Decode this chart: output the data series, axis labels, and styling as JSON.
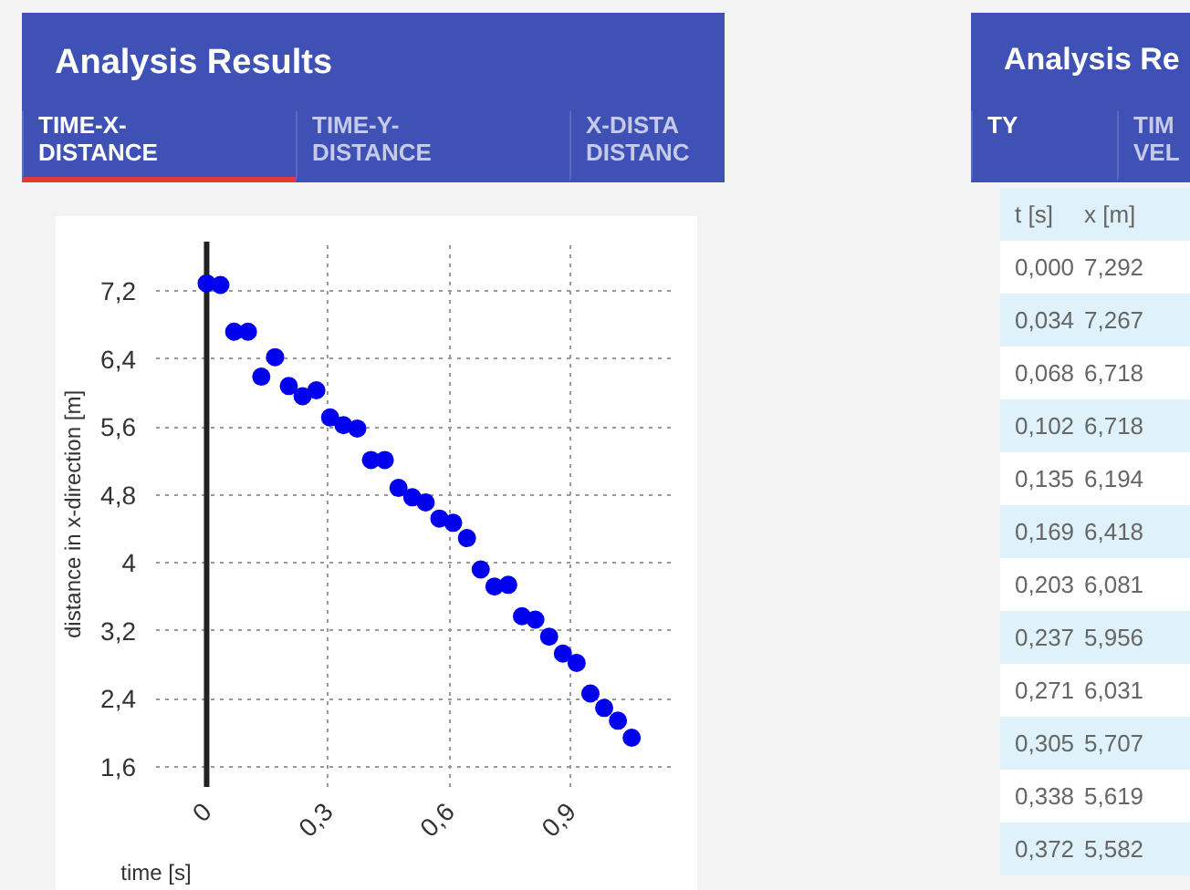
{
  "chart_data": [
    {
      "type": "scatter",
      "title": "Analysis Results",
      "annotations": [
        "TIME-X-\nDISTANCE",
        "TIME-Y-\nDISTANCE",
        "X-DISTA\nDISTANC"
      ],
      "xlabel": "time [s]",
      "ylabel": "distance in x-direction [m]",
      "series": [
        {
          "color": "#0000ee",
          "x": [
            0.0,
            0.034,
            0.068,
            0.102,
            0.135,
            0.169,
            0.203,
            0.237,
            0.271,
            0.305,
            0.338,
            0.372,
            0.406,
            0.44,
            0.474,
            0.508,
            0.541,
            0.575,
            0.609,
            0.643,
            0.677,
            0.711,
            0.745,
            0.779,
            0.812,
            0.846,
            0.88,
            0.914,
            0.948,
            0.982,
            1.016,
            1.05
          ],
          "values": [
            7.29,
            7.27,
            6.72,
            6.72,
            6.19,
            6.42,
            6.08,
            5.96,
            6.03,
            5.71,
            5.62,
            5.58,
            5.21,
            5.21,
            4.88,
            4.77,
            4.71,
            4.52,
            4.47,
            4.29,
            3.92,
            3.72,
            3.74,
            3.37,
            3.33,
            3.13,
            2.93,
            2.82,
            2.46,
            2.29,
            2.14,
            1.94
          ]
        }
      ],
      "marker": "circle",
      "grid": true,
      "xlim": [
        -0.125,
        1.16
      ],
      "ylim": [
        1.36,
        7.78
      ],
      "xticks": [
        {
          "value": 0,
          "label": "0"
        },
        {
          "value": 0.3,
          "label": "0,3"
        },
        {
          "value": 0.6,
          "label": "0,6"
        },
        {
          "value": 0.9,
          "label": "0,9"
        }
      ],
      "yticks": [
        {
          "value": 1.6,
          "label": "1,6"
        },
        {
          "value": 2.4,
          "label": "2,4"
        },
        {
          "value": 3.2,
          "label": "3,2"
        },
        {
          "value": 4,
          "label": "4"
        },
        {
          "value": 4.8,
          "label": "4,8"
        },
        {
          "value": 5.6,
          "label": "5,6"
        },
        {
          "value": 6.4,
          "label": "6,4"
        },
        {
          "value": 7.2,
          "label": "7,2"
        }
      ],
      "ref_lines": [
        {
          "axis": "x",
          "value": 0,
          "color": "#222222"
        }
      ]
    },
    {
      "type": "other",
      "title": "Analysis Re",
      "annotations": [
        "TY",
        "TIM\nVEL",
        "t [s]",
        "x [m]",
        "0,000",
        "7,292",
        "0,034",
        "7,267",
        "0,068",
        "6,718",
        "0,102",
        "6,718",
        "0,135",
        "6,194",
        "0,169",
        "6,418",
        "0,203",
        "6,081",
        "0,237",
        "5,956",
        "0,271",
        "6,031",
        "0,305",
        "5,707",
        "0,338",
        "5,619",
        "0,372",
        "5,582"
      ]
    }
  ]
}
